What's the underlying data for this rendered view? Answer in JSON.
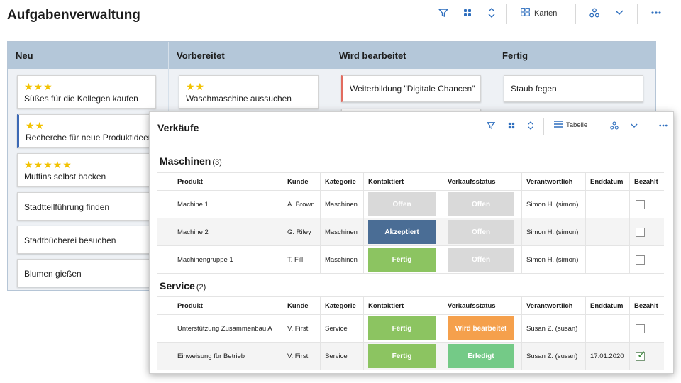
{
  "app": {
    "title": "Aufgabenverwaltung",
    "toolbar": {
      "view_label": "Karten"
    }
  },
  "board": {
    "columns": [
      {
        "title": "Neu",
        "cards": [
          {
            "stars": "★★★",
            "text": "Süßes für die Kollegen kaufen"
          },
          {
            "stars": "★★",
            "text": "Recherche für neue Produktideen"
          },
          {
            "stars": "★★★★★",
            "text": "Muffins selbst backen"
          },
          {
            "stars": "",
            "text": "Stadtteilführung finden"
          },
          {
            "stars": "",
            "text": "Stadtbücherei besuchen"
          },
          {
            "stars": "",
            "text": "Blumen gießen"
          }
        ]
      },
      {
        "title": "Vorbereitet",
        "cards": [
          {
            "stars": "★★",
            "text": "Waschmaschine aussuchen"
          }
        ]
      },
      {
        "title": "Wird bearbeitet",
        "cards": [
          {
            "stars": "",
            "text": "Weiterbildung \"Digitale Chancen\""
          }
        ]
      },
      {
        "title": "Fertig",
        "cards": [
          {
            "stars": "",
            "text": "Staub fegen"
          }
        ]
      }
    ]
  },
  "sales": {
    "title": "Verkäufe",
    "toolbar": {
      "view_label": "Tabelle"
    },
    "columns": [
      "Produkt",
      "Kunde",
      "Kategorie",
      "Kontaktiert",
      "Verkaufsstatus",
      "Verantwortlich",
      "Enddatum",
      "Bezahlt"
    ],
    "groups": [
      {
        "name": "Maschinen",
        "count": "(3)",
        "rows": [
          {
            "produkt": "Machine 1",
            "kunde": "A. Brown",
            "kategorie": "Maschinen",
            "kontaktiert": "Offen",
            "verkaufsstatus": "Offen",
            "verantwortlich": "Simon H. (simon)",
            "enddatum": "",
            "bezahlt": false
          },
          {
            "produkt": "Machine 2",
            "kunde": "G. Riley",
            "kategorie": "Maschinen",
            "kontaktiert": "Akzeptiert",
            "verkaufsstatus": "Offen",
            "verantwortlich": "Simon H. (simon)",
            "enddatum": "",
            "bezahlt": false
          },
          {
            "produkt": "Machinengruppe 1",
            "kunde": "T. Fill",
            "kategorie": "Maschinen",
            "kontaktiert": "Fertig",
            "verkaufsstatus": "Offen",
            "verantwortlich": "Simon H. (simon)",
            "enddatum": "",
            "bezahlt": false
          }
        ]
      },
      {
        "name": "Service",
        "count": "(2)",
        "rows": [
          {
            "produkt": "Unterstützung Zusammenbau A",
            "kunde": "V. First",
            "kategorie": "Service",
            "kontaktiert": "Fertig",
            "verkaufsstatus": "Wird bearbeitet",
            "verantwortlich": "Susan Z. (susan)",
            "enddatum": "",
            "bezahlt": false
          },
          {
            "produkt": "Einweisung für Betrieb",
            "kunde": "V. First",
            "kategorie": "Service",
            "kontaktiert": "Fertig",
            "verkaufsstatus": "Erledigt",
            "verantwortlich": "Susan Z. (susan)",
            "enddatum": "17.01.2020",
            "bezahlt": true
          }
        ]
      }
    ]
  },
  "status_colors": {
    "Offen": "#d9d9d9",
    "Akzeptiert": "#4a6d95",
    "Fertig": "#8cc461",
    "Wird bearbeitet": "#f5a04c",
    "Erledigt": "#74ca87"
  },
  "icons": [
    "filter-icon",
    "group-dots-icon",
    "sort-icon",
    "cards-view-icon",
    "table-view-icon",
    "hierarchy-icon",
    "chevron-down-icon",
    "more-icon"
  ]
}
